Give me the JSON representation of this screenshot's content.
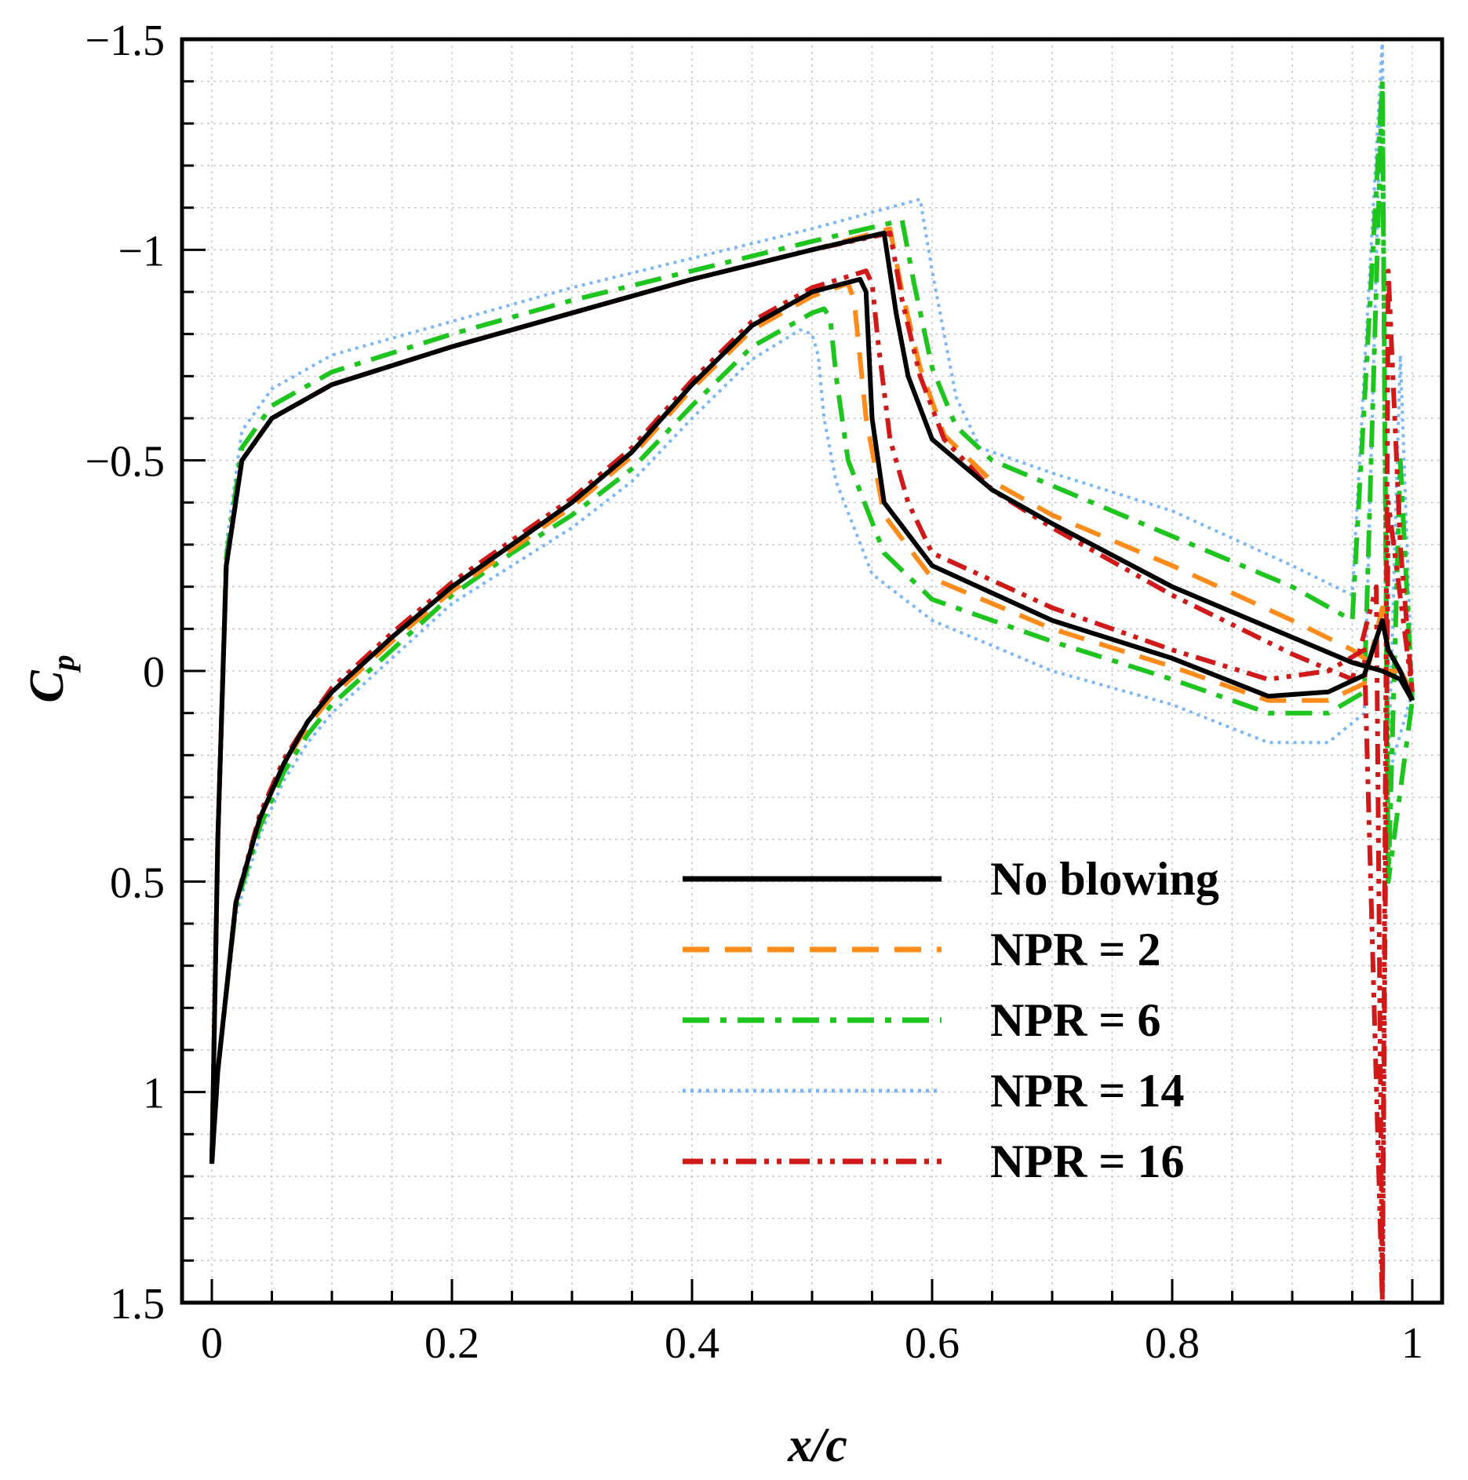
{
  "chart_data": {
    "type": "line",
    "title": "",
    "xlabel": "x/c",
    "ylabel": "C",
    "ylabel_subscript": "p",
    "xlim": [
      0,
      1
    ],
    "ylim": [
      1.5,
      -1.5
    ],
    "y_inverted": true,
    "grid": true,
    "legend_position": "lower-right",
    "x_ticks": [
      0,
      0.2,
      0.4,
      0.6,
      0.8,
      1
    ],
    "x_tick_labels": [
      "0",
      "0.2",
      "0.4",
      "0.6",
      "0.8",
      "1"
    ],
    "y_ticks": [
      -1.5,
      -1,
      -0.5,
      0,
      0.5,
      1,
      1.5
    ],
    "y_tick_labels": [
      "−1.5",
      "−1",
      "−0.5",
      "0",
      "0.5",
      "1",
      "1.5"
    ],
    "series": [
      {
        "name": "No blowing",
        "color": "#000000",
        "style": "solid",
        "upper": {
          "x": [
            0,
            0.005,
            0.012,
            0.025,
            0.05,
            0.1,
            0.2,
            0.3,
            0.4,
            0.5,
            0.56,
            0.57,
            0.58,
            0.6,
            0.65,
            0.7,
            0.8,
            0.9,
            0.95,
            0.975,
            0.99,
            1.0
          ],
          "y": [
            1.17,
            0.4,
            -0.25,
            -0.5,
            -0.6,
            -0.68,
            -0.77,
            -0.85,
            -0.93,
            -1.0,
            -1.04,
            -0.85,
            -0.7,
            -0.55,
            -0.43,
            -0.35,
            -0.2,
            -0.08,
            -0.02,
            0.0,
            0.02,
            0.07
          ]
        },
        "lower": {
          "x": [
            0,
            0.005,
            0.02,
            0.04,
            0.06,
            0.08,
            0.1,
            0.15,
            0.2,
            0.25,
            0.3,
            0.35,
            0.4,
            0.45,
            0.5,
            0.54,
            0.545,
            0.55,
            0.56,
            0.6,
            0.7,
            0.8,
            0.88,
            0.93,
            0.96,
            0.975,
            0.98,
            0.99,
            1.0
          ],
          "y": [
            1.17,
            0.95,
            0.55,
            0.35,
            0.22,
            0.12,
            0.05,
            -0.08,
            -0.2,
            -0.3,
            -0.4,
            -0.52,
            -0.68,
            -0.82,
            -0.9,
            -0.93,
            -0.9,
            -0.6,
            -0.4,
            -0.25,
            -0.12,
            -0.03,
            0.06,
            0.05,
            0.01,
            -0.12,
            -0.05,
            0.0,
            0.07
          ]
        }
      },
      {
        "name": "NPR = 2",
        "color": "#ff8c1a",
        "style": "dashed",
        "upper": {
          "x": [
            0,
            0.005,
            0.012,
            0.025,
            0.05,
            0.1,
            0.2,
            0.3,
            0.4,
            0.5,
            0.565,
            0.575,
            0.59,
            0.61,
            0.65,
            0.7,
            0.8,
            0.9,
            0.95,
            0.975,
            0.99,
            1.0
          ],
          "y": [
            1.17,
            0.4,
            -0.25,
            -0.5,
            -0.6,
            -0.68,
            -0.77,
            -0.85,
            -0.93,
            -1.0,
            -1.05,
            -0.9,
            -0.72,
            -0.56,
            -0.45,
            -0.37,
            -0.25,
            -0.12,
            -0.05,
            0.0,
            0.0,
            0.05
          ]
        },
        "lower": {
          "x": [
            0,
            0.005,
            0.02,
            0.04,
            0.06,
            0.08,
            0.1,
            0.15,
            0.2,
            0.25,
            0.3,
            0.35,
            0.4,
            0.45,
            0.5,
            0.53,
            0.535,
            0.545,
            0.56,
            0.6,
            0.7,
            0.8,
            0.88,
            0.93,
            0.96,
            0.975,
            0.98,
            0.99,
            1.0
          ],
          "y": [
            1.17,
            0.95,
            0.55,
            0.35,
            0.22,
            0.13,
            0.06,
            -0.07,
            -0.19,
            -0.29,
            -0.39,
            -0.51,
            -0.67,
            -0.81,
            -0.89,
            -0.92,
            -0.88,
            -0.6,
            -0.37,
            -0.22,
            -0.1,
            -0.01,
            0.07,
            0.07,
            0.03,
            -0.15,
            -0.05,
            0.0,
            0.05
          ]
        }
      },
      {
        "name": "NPR = 6",
        "color": "#1ec51e",
        "style": "dashdot",
        "upper": {
          "x": [
            0,
            0.005,
            0.012,
            0.025,
            0.05,
            0.1,
            0.2,
            0.3,
            0.4,
            0.5,
            0.575,
            0.585,
            0.6,
            0.62,
            0.65,
            0.7,
            0.8,
            0.9,
            0.95,
            0.975,
            0.98,
            0.99,
            1.0
          ],
          "y": [
            1.17,
            0.4,
            -0.27,
            -0.53,
            -0.63,
            -0.71,
            -0.8,
            -0.88,
            -0.95,
            -1.02,
            -1.07,
            -0.92,
            -0.72,
            -0.58,
            -0.5,
            -0.44,
            -0.32,
            -0.2,
            -0.12,
            -1.4,
            0.5,
            -0.5,
            0.07
          ]
        },
        "lower": {
          "x": [
            0,
            0.005,
            0.02,
            0.04,
            0.06,
            0.08,
            0.1,
            0.15,
            0.2,
            0.25,
            0.3,
            0.35,
            0.4,
            0.45,
            0.5,
            0.51,
            0.515,
            0.52,
            0.53,
            0.56,
            0.6,
            0.7,
            0.8,
            0.88,
            0.93,
            0.96,
            0.975,
            0.98,
            1.0
          ],
          "y": [
            1.17,
            0.95,
            0.56,
            0.37,
            0.24,
            0.15,
            0.08,
            -0.05,
            -0.18,
            -0.28,
            -0.37,
            -0.48,
            -0.63,
            -0.77,
            -0.85,
            -0.86,
            -0.84,
            -0.7,
            -0.5,
            -0.28,
            -0.17,
            -0.07,
            0.02,
            0.1,
            0.1,
            0.05,
            -1.4,
            0.5,
            0.07
          ]
        }
      },
      {
        "name": "NPR = 14",
        "color": "#7ab8f5",
        "style": "dotted",
        "upper": {
          "x": [
            0,
            0.005,
            0.012,
            0.025,
            0.05,
            0.1,
            0.2,
            0.3,
            0.4,
            0.5,
            0.59,
            0.6,
            0.62,
            0.64,
            0.67,
            0.7,
            0.8,
            0.9,
            0.95,
            0.975,
            0.98,
            0.99,
            1.0
          ],
          "y": [
            1.17,
            0.38,
            -0.3,
            -0.57,
            -0.67,
            -0.75,
            -0.83,
            -0.91,
            -0.98,
            -1.05,
            -1.12,
            -0.95,
            -0.65,
            -0.53,
            -0.5,
            -0.47,
            -0.38,
            -0.25,
            -0.18,
            -1.5,
            0.25,
            -0.75,
            0.05
          ]
        },
        "lower": {
          "x": [
            0,
            0.005,
            0.02,
            0.04,
            0.06,
            0.08,
            0.1,
            0.15,
            0.2,
            0.25,
            0.3,
            0.35,
            0.4,
            0.45,
            0.49,
            0.5,
            0.505,
            0.51,
            0.52,
            0.55,
            0.6,
            0.7,
            0.8,
            0.88,
            0.93,
            0.96,
            0.975,
            0.98,
            1.0
          ],
          "y": [
            1.17,
            0.95,
            0.58,
            0.39,
            0.26,
            0.17,
            0.1,
            -0.03,
            -0.16,
            -0.25,
            -0.34,
            -0.45,
            -0.6,
            -0.74,
            -0.81,
            -0.8,
            -0.75,
            -0.6,
            -0.45,
            -0.23,
            -0.12,
            0.0,
            0.08,
            0.17,
            0.17,
            0.1,
            -1.5,
            0.25,
            0.05
          ]
        }
      },
      {
        "name": "NPR = 16",
        "color": "#d01a1a",
        "style": "dashdotdot",
        "upper": {
          "x": [
            0,
            0.005,
            0.012,
            0.025,
            0.05,
            0.1,
            0.2,
            0.3,
            0.4,
            0.5,
            0.565,
            0.575,
            0.59,
            0.61,
            0.65,
            0.7,
            0.8,
            0.9,
            0.95,
            0.97,
            0.975,
            0.98,
            0.99,
            1.0
          ],
          "y": [
            1.17,
            0.4,
            -0.25,
            -0.5,
            -0.6,
            -0.68,
            -0.77,
            -0.85,
            -0.93,
            -1.0,
            -1.04,
            -0.88,
            -0.7,
            -0.55,
            -0.43,
            -0.34,
            -0.18,
            -0.04,
            0.02,
            -0.2,
            1.5,
            -0.95,
            -0.3,
            0.05
          ]
        },
        "lower": {
          "x": [
            0,
            0.005,
            0.02,
            0.04,
            0.06,
            0.08,
            0.1,
            0.15,
            0.2,
            0.25,
            0.3,
            0.35,
            0.4,
            0.45,
            0.5,
            0.545,
            0.55,
            0.555,
            0.565,
            0.58,
            0.6,
            0.7,
            0.8,
            0.88,
            0.93,
            0.96,
            0.975,
            0.98,
            1.0
          ],
          "y": [
            1.17,
            0.95,
            0.55,
            0.34,
            0.21,
            0.12,
            0.04,
            -0.09,
            -0.21,
            -0.31,
            -0.41,
            -0.53,
            -0.69,
            -0.83,
            -0.91,
            -0.95,
            -0.92,
            -0.78,
            -0.55,
            -0.4,
            -0.28,
            -0.15,
            -0.05,
            0.02,
            0.0,
            -0.05,
            1.5,
            -0.4,
            0.05
          ]
        }
      }
    ]
  }
}
